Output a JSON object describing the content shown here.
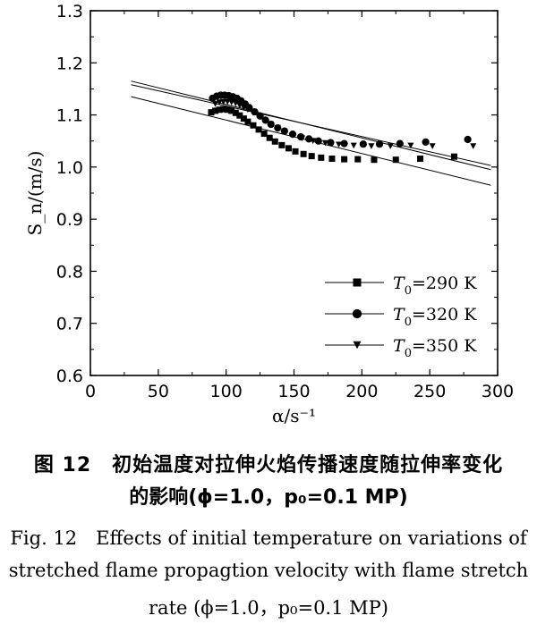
{
  "chart_data": {
    "type": "scatter",
    "xlabel": "α/s⁻¹",
    "ylabel": "S_n/(m/s)",
    "xlim": [
      0,
      300
    ],
    "ylim": [
      0.6,
      1.3
    ],
    "x_ticks": [
      "0",
      "50",
      "100",
      "150",
      "200",
      "250",
      "300"
    ],
    "y_ticks": [
      "0.6",
      "0.7",
      "0.8",
      "0.9",
      "1.0",
      "1.1",
      "1.2",
      "1.3"
    ],
    "legend_position": "bottom-right",
    "series": [
      {
        "name": "T0=290 K",
        "legend_main": "T",
        "legend_sub": "0",
        "legend_rest": "=290 K",
        "marker": "square",
        "points": [
          [
            89,
            1.105
          ],
          [
            92,
            1.108
          ],
          [
            95,
            1.11
          ],
          [
            98,
            1.111
          ],
          [
            101,
            1.11
          ],
          [
            104,
            1.108
          ],
          [
            107,
            1.104
          ],
          [
            110,
            1.099
          ],
          [
            113,
            1.093
          ],
          [
            116,
            1.087
          ],
          [
            120,
            1.08
          ],
          [
            124,
            1.072
          ],
          [
            128,
            1.064
          ],
          [
            132,
            1.056
          ],
          [
            136,
            1.049
          ],
          [
            141,
            1.042
          ],
          [
            146,
            1.036
          ],
          [
            151,
            1.03
          ],
          [
            157,
            1.025
          ],
          [
            163,
            1.021
          ],
          [
            170,
            1.018
          ],
          [
            178,
            1.016
          ],
          [
            187,
            1.015
          ],
          [
            197,
            1.015
          ],
          [
            209,
            1.014
          ],
          [
            225,
            1.014
          ],
          [
            243,
            1.016
          ],
          [
            268,
            1.02
          ]
        ],
        "fit": [
          [
            30,
            1.135
          ],
          [
            295,
            0.965
          ]
        ]
      },
      {
        "name": "T0=320 K",
        "legend_main": "T",
        "legend_sub": "0",
        "legend_rest": "=320 K",
        "marker": "circle",
        "points": [
          [
            90,
            1.132
          ],
          [
            93,
            1.136
          ],
          [
            96,
            1.138
          ],
          [
            99,
            1.138
          ],
          [
            102,
            1.137
          ],
          [
            105,
            1.135
          ],
          [
            108,
            1.132
          ],
          [
            111,
            1.127
          ],
          [
            114,
            1.121
          ],
          [
            117,
            1.114
          ],
          [
            121,
            1.106
          ],
          [
            125,
            1.098
          ],
          [
            129,
            1.09
          ],
          [
            133,
            1.082
          ],
          [
            138,
            1.075
          ],
          [
            143,
            1.069
          ],
          [
            149,
            1.063
          ],
          [
            155,
            1.058
          ],
          [
            161,
            1.054
          ],
          [
            168,
            1.05
          ],
          [
            177,
            1.047
          ],
          [
            187,
            1.045
          ],
          [
            201,
            1.044
          ],
          [
            213,
            1.044
          ],
          [
            228,
            1.045
          ],
          [
            247,
            1.048
          ],
          [
            278,
            1.053
          ]
        ],
        "fit": [
          [
            30,
            1.165
          ],
          [
            295,
            0.995
          ]
        ]
      },
      {
        "name": "T0=350 K",
        "legend_main": "T",
        "legend_sub": "0",
        "legend_rest": "=350 K",
        "marker": "triangle-down",
        "points": [
          [
            92,
            1.121
          ],
          [
            95,
            1.124
          ],
          [
            98,
            1.125
          ],
          [
            101,
            1.125
          ],
          [
            104,
            1.124
          ],
          [
            107,
            1.122
          ],
          [
            110,
            1.118
          ],
          [
            113,
            1.114
          ],
          [
            116,
            1.11
          ],
          [
            120,
            1.104
          ],
          [
            124,
            1.097
          ],
          [
            128,
            1.089
          ],
          [
            133,
            1.082
          ],
          [
            138,
            1.075
          ],
          [
            143,
            1.068
          ],
          [
            149,
            1.061
          ],
          [
            156,
            1.055
          ],
          [
            164,
            1.05
          ],
          [
            173,
            1.046
          ],
          [
            183,
            1.043
          ],
          [
            194,
            1.041
          ],
          [
            207,
            1.04
          ],
          [
            221,
            1.04
          ],
          [
            236,
            1.041
          ],
          [
            252,
            1.04
          ],
          [
            282,
            1.04
          ]
        ],
        "fit": [
          [
            30,
            1.158
          ],
          [
            295,
            1.003
          ]
        ]
      }
    ]
  },
  "caption": {
    "cn_line1": "图 12　初始温度对拉伸火焰传播速度随拉伸率变化",
    "cn_line2": "的影响(ϕ=1.0，p₀=0.1 MP)",
    "en_line1": "Fig. 12　Effects of initial temperature on variations of",
    "en_line2": "stretched flame propagtion velocity with flame stretch",
    "en_line3": "rate (ϕ=1.0，p₀=0.1 MP)"
  }
}
